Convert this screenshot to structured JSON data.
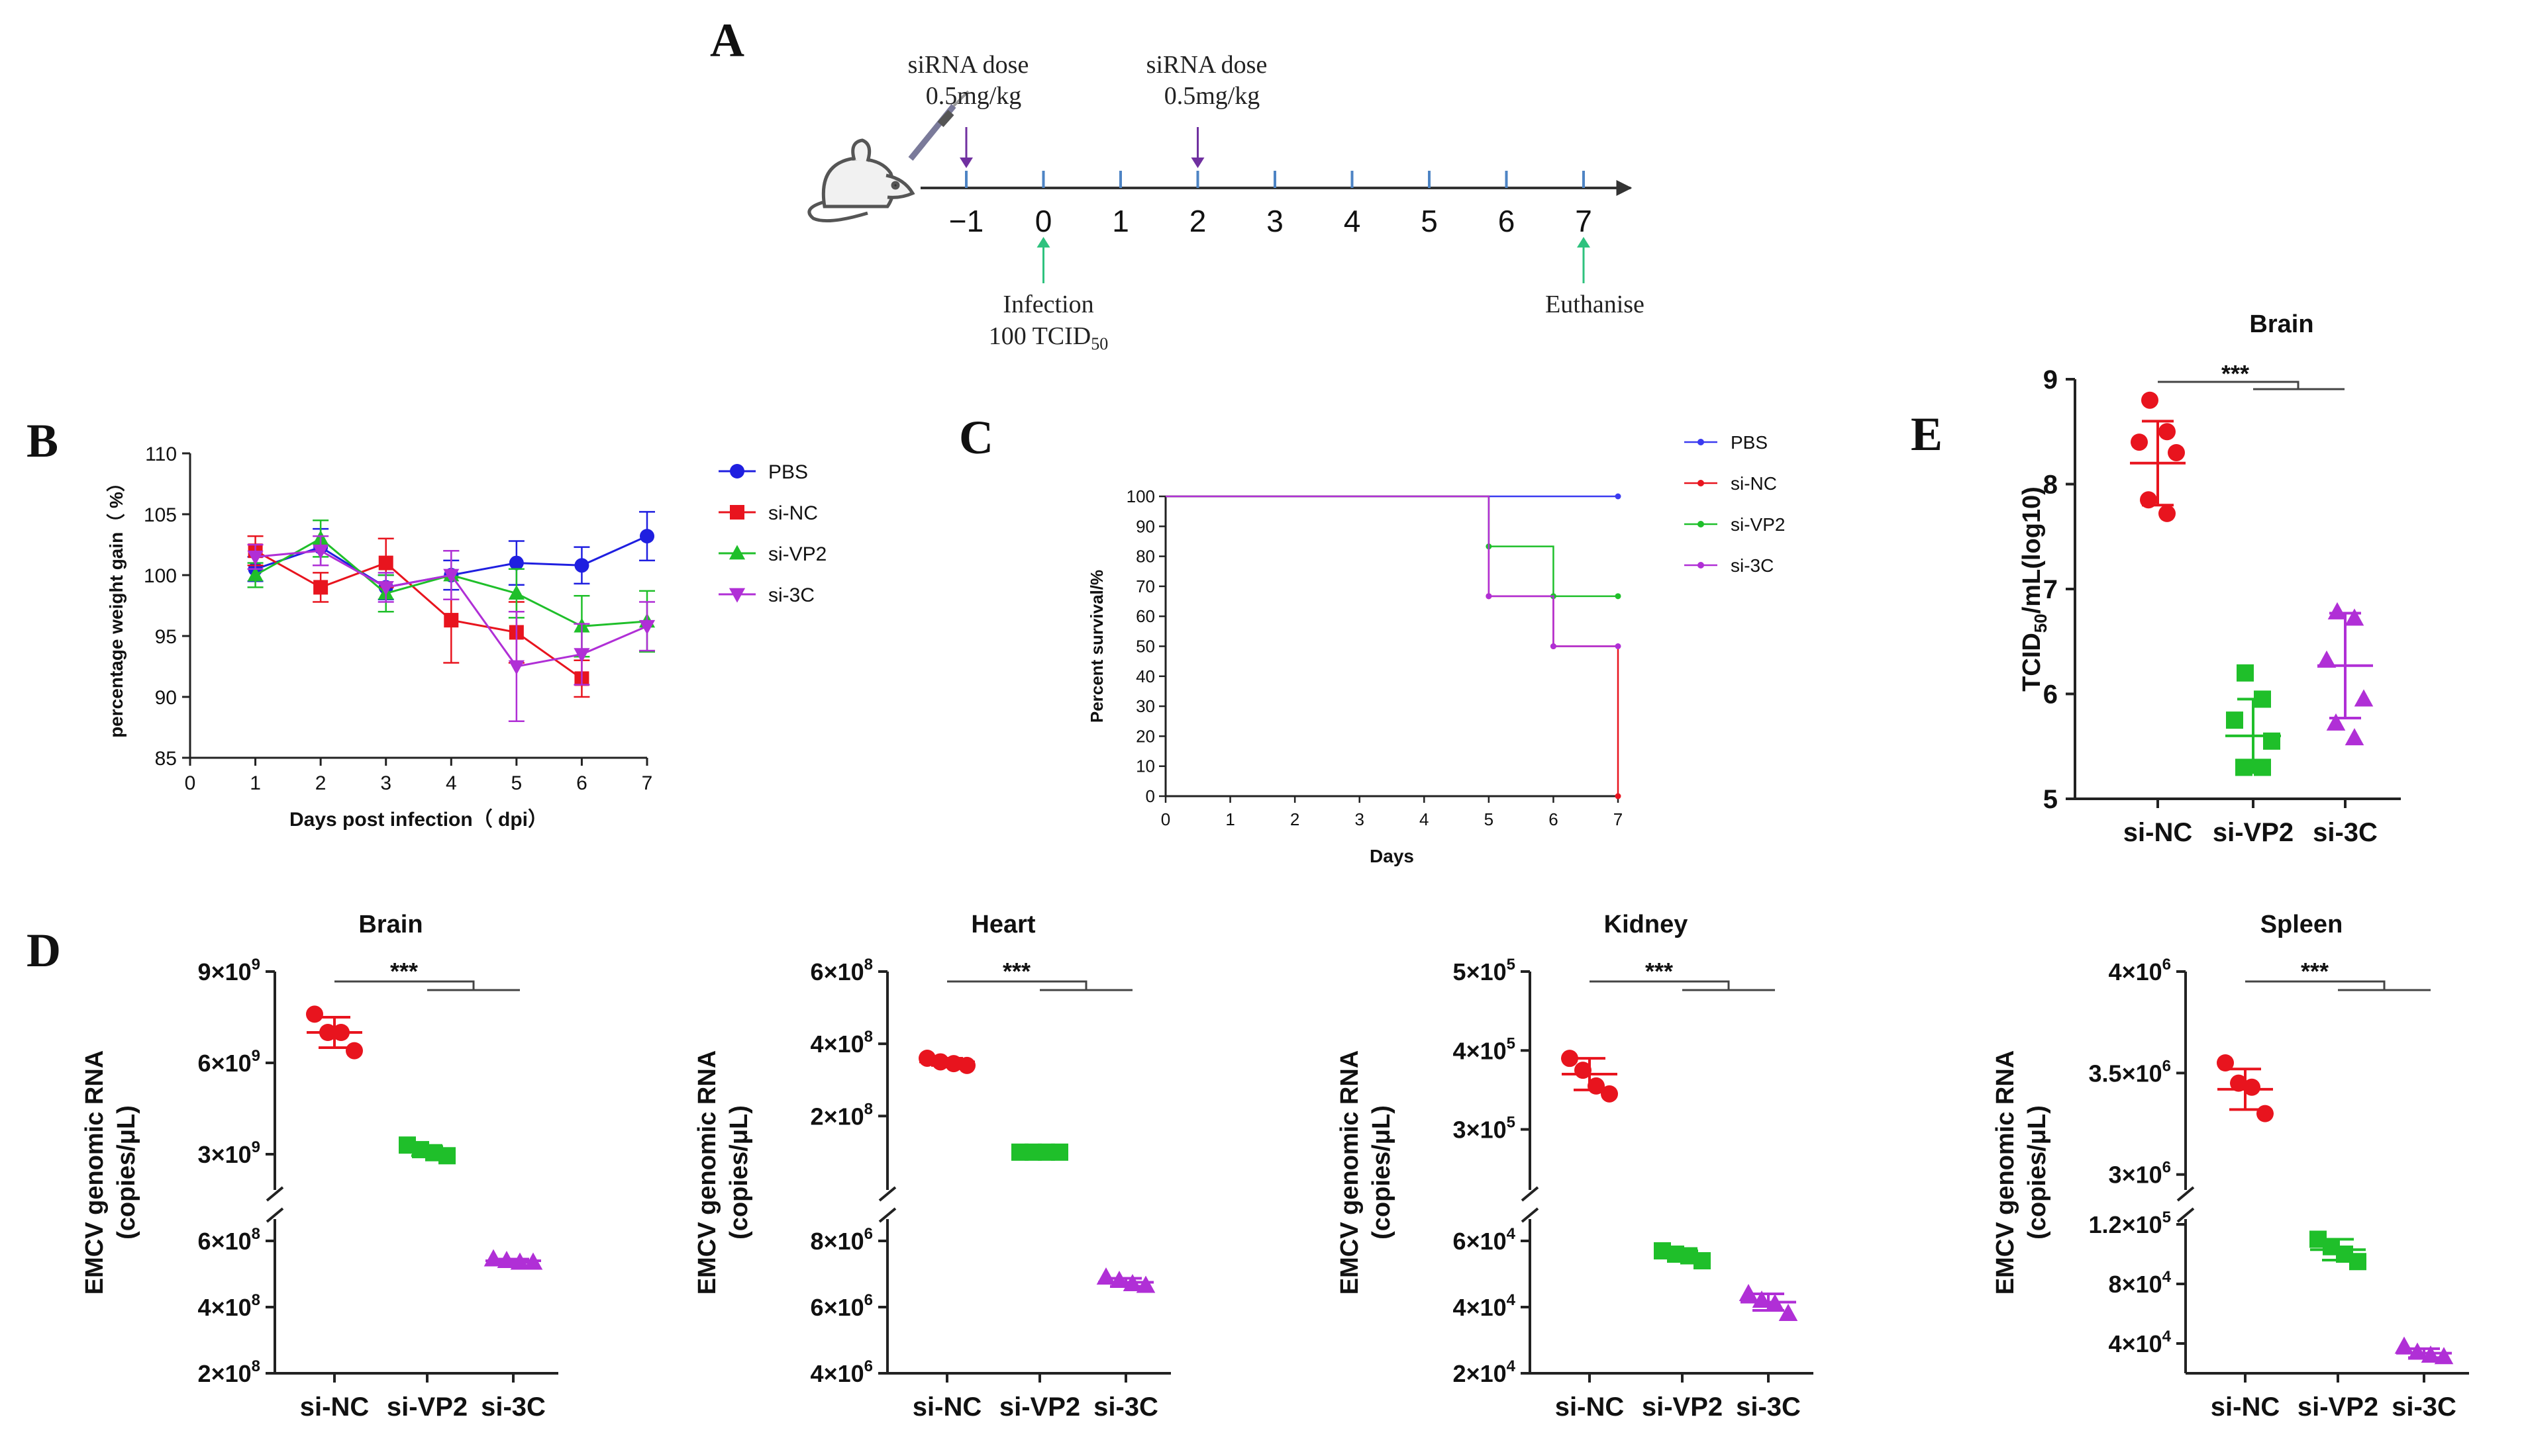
{
  "panels": {
    "A": "A",
    "B": "B",
    "C": "C",
    "D": "D",
    "E": "E"
  },
  "timeline": {
    "ticks": [
      "−1",
      "0",
      "1",
      "2",
      "3",
      "4",
      "5",
      "6",
      "7"
    ],
    "dose1_line1": "siRNA dose",
    "dose1_line2": "0.5mg/kg",
    "dose2_line1": "siRNA dose",
    "dose2_line2": "0.5mg/kg",
    "infection_line1": "Infection",
    "infection_line2_main": "100 TCID",
    "infection_line2_sub": "50",
    "euthanise": "Euthanise",
    "colors": {
      "dose": "#7030a0",
      "event": "#2ec27e",
      "tick": "#4e84c4"
    }
  },
  "chart_data": [
    {
      "panel": "B",
      "type": "line",
      "title": "",
      "xlabel": "Days post infection（ dpi）",
      "ylabel": "percentage weight gain（ %）",
      "xlim": [
        0,
        7
      ],
      "ylim": [
        85,
        110
      ],
      "xticks": [
        "0",
        "1",
        "2",
        "3",
        "4",
        "5",
        "6",
        "7"
      ],
      "yticks": [
        "85",
        "90",
        "95",
        "100",
        "105",
        "110"
      ],
      "legend_position": "right",
      "series": [
        {
          "name": "PBS",
          "color": "#1f1fe0",
          "marker": "circle",
          "x": [
            1,
            2,
            3,
            4,
            5,
            6,
            7
          ],
          "y": [
            100.5,
            102.3,
            99.0,
            100.0,
            101.0,
            100.8,
            103.2
          ],
          "err": [
            1.0,
            1.5,
            1.0,
            1.2,
            1.8,
            1.5,
            2.0
          ]
        },
        {
          "name": "si-NC",
          "color": "#e8141e",
          "marker": "square",
          "x": [
            1,
            2,
            3,
            4,
            5,
            6
          ],
          "y": [
            102.0,
            99.0,
            101.0,
            96.3,
            95.3,
            91.5
          ],
          "err": [
            1.2,
            1.2,
            2.0,
            3.5,
            2.5,
            1.5
          ]
        },
        {
          "name": "si-VP2",
          "color": "#1fbf2a",
          "marker": "triangle-up",
          "x": [
            1,
            2,
            3,
            4,
            5,
            6,
            7
          ],
          "y": [
            100.0,
            103.0,
            98.5,
            100.0,
            98.5,
            95.8,
            96.2
          ],
          "err": [
            1.0,
            1.5,
            1.5,
            2.0,
            2.0,
            2.5,
            2.5
          ]
        },
        {
          "name": "si-3C",
          "color": "#b02fd6",
          "marker": "triangle-down",
          "x": [
            1,
            2,
            3,
            4,
            5,
            6,
            7
          ],
          "y": [
            101.5,
            102.0,
            99.0,
            100.0,
            92.5,
            93.5,
            95.8
          ],
          "err": [
            1.0,
            1.2,
            1.2,
            2.0,
            4.5,
            2.5,
            2.0
          ]
        }
      ]
    },
    {
      "panel": "C",
      "type": "line",
      "title": "",
      "xlabel": "Days",
      "ylabel": "Percent survival/%",
      "xlim": [
        0,
        7
      ],
      "ylim": [
        0,
        100
      ],
      "xticks": [
        "0",
        "1",
        "2",
        "3",
        "4",
        "5",
        "6",
        "7"
      ],
      "yticks": [
        "0",
        "10",
        "20",
        "30",
        "40",
        "50",
        "60",
        "70",
        "80",
        "90",
        "100"
      ],
      "step": true,
      "legend_position": "right",
      "series": [
        {
          "name": "PBS",
          "color": "#3b3bf0",
          "x": [
            0,
            7
          ],
          "y": [
            100,
            100
          ]
        },
        {
          "name": "si-NC",
          "color": "#e8141e",
          "x": [
            0,
            5,
            6,
            7
          ],
          "y": [
            100,
            66.7,
            50,
            0
          ]
        },
        {
          "name": "si-VP2",
          "color": "#1fbf2a",
          "x": [
            0,
            5,
            6,
            7
          ],
          "y": [
            100,
            83.3,
            66.7,
            66.7
          ]
        },
        {
          "name": "si-3C",
          "color": "#b02fd6",
          "x": [
            0,
            5,
            6,
            7
          ],
          "y": [
            100,
            66.7,
            50,
            50
          ]
        }
      ]
    },
    {
      "panel": "E",
      "type": "scatter",
      "title": "Brain",
      "ylabel_main": "TCID",
      "ylabel_sub": "50",
      "ylabel_rest": "/mL(log10)",
      "ylim": [
        5,
        9
      ],
      "yticks": [
        "5",
        "6",
        "7",
        "8",
        "9"
      ],
      "categories": [
        "si-NC",
        "si-VP2",
        "si-3C"
      ],
      "significance": "***",
      "groups": [
        {
          "name": "si-NC",
          "color": "#e8141e",
          "marker": "circle",
          "points": [
            8.8,
            8.5,
            8.4,
            8.3,
            7.85,
            7.72
          ],
          "mean": 8.2,
          "sd": 0.4
        },
        {
          "name": "si-VP2",
          "color": "#1fbf2a",
          "marker": "square",
          "points": [
            6.2,
            5.95,
            5.75,
            5.55,
            5.3,
            5.3
          ],
          "mean": 5.6,
          "sd": 0.35
        },
        {
          "name": "si-3C",
          "color": "#b02fd6",
          "marker": "triangle-up",
          "points": [
            6.78,
            6.72,
            6.32,
            5.95,
            5.72,
            5.58
          ],
          "mean": 6.27,
          "sd": 0.5
        }
      ]
    },
    {
      "panel": "D",
      "type": "scatter",
      "title": "Brain",
      "ylabel_line1": "EMCV genomic RNA",
      "ylabel_line2": "(copies/μL)",
      "broken_axis": true,
      "upper_ylim": [
        2000000000.0,
        9000000000.0
      ],
      "upper_ticks": [
        {
          "v": 9000000000.0,
          "m": "9",
          "e": "9"
        },
        {
          "v": 6000000000.0,
          "m": "6",
          "e": "9"
        },
        {
          "v": 3000000000.0,
          "m": "3",
          "e": "9"
        }
      ],
      "lower_ylim": [
        200000000.0,
        650000000.0
      ],
      "lower_ticks": [
        {
          "v": 600000000.0,
          "m": "6",
          "e": "8"
        },
        {
          "v": 400000000.0,
          "m": "4",
          "e": "8"
        },
        {
          "v": 200000000.0,
          "m": "2",
          "e": "8"
        }
      ],
      "categories": [
        "si-NC",
        "si-VP2",
        "si-3C"
      ],
      "significance": "***",
      "groups": [
        {
          "name": "si-NC",
          "color": "#e8141e",
          "marker": "circle",
          "segment": "upper",
          "points": [
            7600000000.0,
            7000000000.0,
            7000000000.0,
            6400000000.0
          ],
          "mean": 7000000000.0,
          "sd": 500000000.0
        },
        {
          "name": "si-VP2",
          "color": "#1fbf2a",
          "marker": "square",
          "segment": "upper",
          "points": [
            3300000000.0,
            3150000000.0,
            3050000000.0,
            2950000000.0
          ],
          "mean": 3100000000.0,
          "sd": 150000000.0
        },
        {
          "name": "si-3C",
          "color": "#b02fd6",
          "marker": "triangle-up",
          "segment": "lower",
          "points": [
            545000000.0,
            540000000.0,
            535000000.0,
            535000000.0
          ],
          "mean": 540000000.0,
          "sd": 5000000.0
        }
      ]
    },
    {
      "panel": "D",
      "type": "scatter",
      "title": "Heart",
      "ylabel_line1": "EMCV genomic RNA",
      "ylabel_line2": "(copies/μL)",
      "broken_axis": true,
      "upper_ylim": [
        10000000.0,
        600000000.0
      ],
      "upper_ticks": [
        {
          "v": 600000000.0,
          "m": "6",
          "e": "8"
        },
        {
          "v": 400000000.0,
          "m": "4",
          "e": "8"
        },
        {
          "v": 200000000.0,
          "m": "2",
          "e": "8"
        }
      ],
      "lower_ylim": [
        4000000.0,
        8500000.0
      ],
      "lower_ticks": [
        {
          "v": 8000000.0,
          "m": "8",
          "e": "6"
        },
        {
          "v": 6000000.0,
          "m": "6",
          "e": "6"
        },
        {
          "v": 4000000.0,
          "m": "4",
          "e": "6"
        }
      ],
      "categories": [
        "si-NC",
        "si-VP2",
        "si-3C"
      ],
      "significance": "***",
      "groups": [
        {
          "name": "si-NC",
          "color": "#e8141e",
          "marker": "circle",
          "segment": "upper",
          "points": [
            360000000.0,
            350000000.0,
            345000000.0,
            340000000.0
          ],
          "mean": 350000000.0,
          "sd": 10000000.0
        },
        {
          "name": "si-VP2",
          "color": "#1fbf2a",
          "marker": "square",
          "segment": "upper",
          "points": [
            100000000.0,
            100000000.0,
            100000000.0,
            100000000.0
          ],
          "mean": 100000000.0,
          "sd": 1000000.0
        },
        {
          "name": "si-3C",
          "color": "#b02fd6",
          "marker": "triangle-up",
          "segment": "lower",
          "points": [
            6900000.0,
            6800000.0,
            6700000.0,
            6650000.0
          ],
          "mean": 6750000.0,
          "sd": 120000.0
        }
      ]
    },
    {
      "panel": "D",
      "type": "scatter",
      "title": "Kidney",
      "ylabel_line1": "EMCV genomic RNA",
      "ylabel_line2": "(copies/μL)",
      "broken_axis": true,
      "upper_ylim": [
        230000.0,
        500000.0
      ],
      "upper_ticks": [
        {
          "v": 500000.0,
          "m": "5",
          "e": "5"
        },
        {
          "v": 400000.0,
          "m": "4",
          "e": "5"
        },
        {
          "v": 300000.0,
          "m": "3",
          "e": "5"
        }
      ],
      "lower_ylim": [
        20000.0,
        65000.0
      ],
      "lower_ticks": [
        {
          "v": 60000.0,
          "m": "6",
          "e": "4"
        },
        {
          "v": 40000.0,
          "m": "4",
          "e": "4"
        },
        {
          "v": 20000.0,
          "m": "2",
          "e": "4"
        }
      ],
      "categories": [
        "si-NC",
        "si-VP2",
        "si-3C"
      ],
      "significance": "***",
      "groups": [
        {
          "name": "si-NC",
          "color": "#e8141e",
          "marker": "circle",
          "segment": "upper",
          "points": [
            390000.0,
            375000.0,
            355000.0,
            345000.0
          ],
          "mean": 370000.0,
          "sd": 20000.0
        },
        {
          "name": "si-VP2",
          "color": "#1fbf2a",
          "marker": "square",
          "segment": "lower",
          "points": [
            57000.0,
            56000.0,
            55500.0,
            54000.0
          ],
          "mean": 56000.0,
          "sd": 1000.0
        },
        {
          "name": "si-3C",
          "color": "#b02fd6",
          "marker": "triangle-up",
          "segment": "lower",
          "points": [
            44000.0,
            42000.0,
            41000.0,
            38000.0
          ],
          "mean": 41500.0,
          "sd": 2500.0
        }
      ]
    },
    {
      "panel": "D",
      "type": "scatter",
      "title": "Spleen",
      "ylabel_line1": "EMCV genomic RNA",
      "ylabel_line2": "(copies/μL)",
      "broken_axis": true,
      "upper_ylim": [
        2950000.0,
        4000000.0
      ],
      "upper_ticks": [
        {
          "v": 4000000.0,
          "m": "4",
          "e": "6"
        },
        {
          "v": 3500000.0,
          "m": "3.5",
          "e": "6"
        },
        {
          "v": 3000000.0,
          "m": "3",
          "e": "6"
        }
      ],
      "lower_ylim": [
        20000.0,
        120000.0
      ],
      "lower_ticks": [
        {
          "v": 120000.0,
          "m": "1.2",
          "e": "5"
        },
        {
          "v": 80000.0,
          "m": "8",
          "e": "4"
        },
        {
          "v": 40000.0,
          "m": "4",
          "e": "4"
        }
      ],
      "categories": [
        "si-NC",
        "si-VP2",
        "si-3C"
      ],
      "significance": "***",
      "groups": [
        {
          "name": "si-NC",
          "color": "#e8141e",
          "marker": "circle",
          "segment": "upper",
          "points": [
            3550000.0,
            3450000.0,
            3430000.0,
            3300000.0
          ],
          "mean": 3420000.0,
          "sd": 100000.0
        },
        {
          "name": "si-VP2",
          "color": "#1fbf2a",
          "marker": "square",
          "segment": "lower",
          "points": [
            110000.0,
            105000.0,
            100000.0,
            95000.0
          ],
          "mean": 103000.0,
          "sd": 7000.0
        },
        {
          "name": "si-3C",
          "color": "#b02fd6",
          "marker": "triangle-up",
          "segment": "lower",
          "points": [
            38000.0,
            34000.0,
            32000.0,
            31000.0
          ],
          "mean": 33500.0,
          "sd": 3000.0
        }
      ]
    }
  ]
}
